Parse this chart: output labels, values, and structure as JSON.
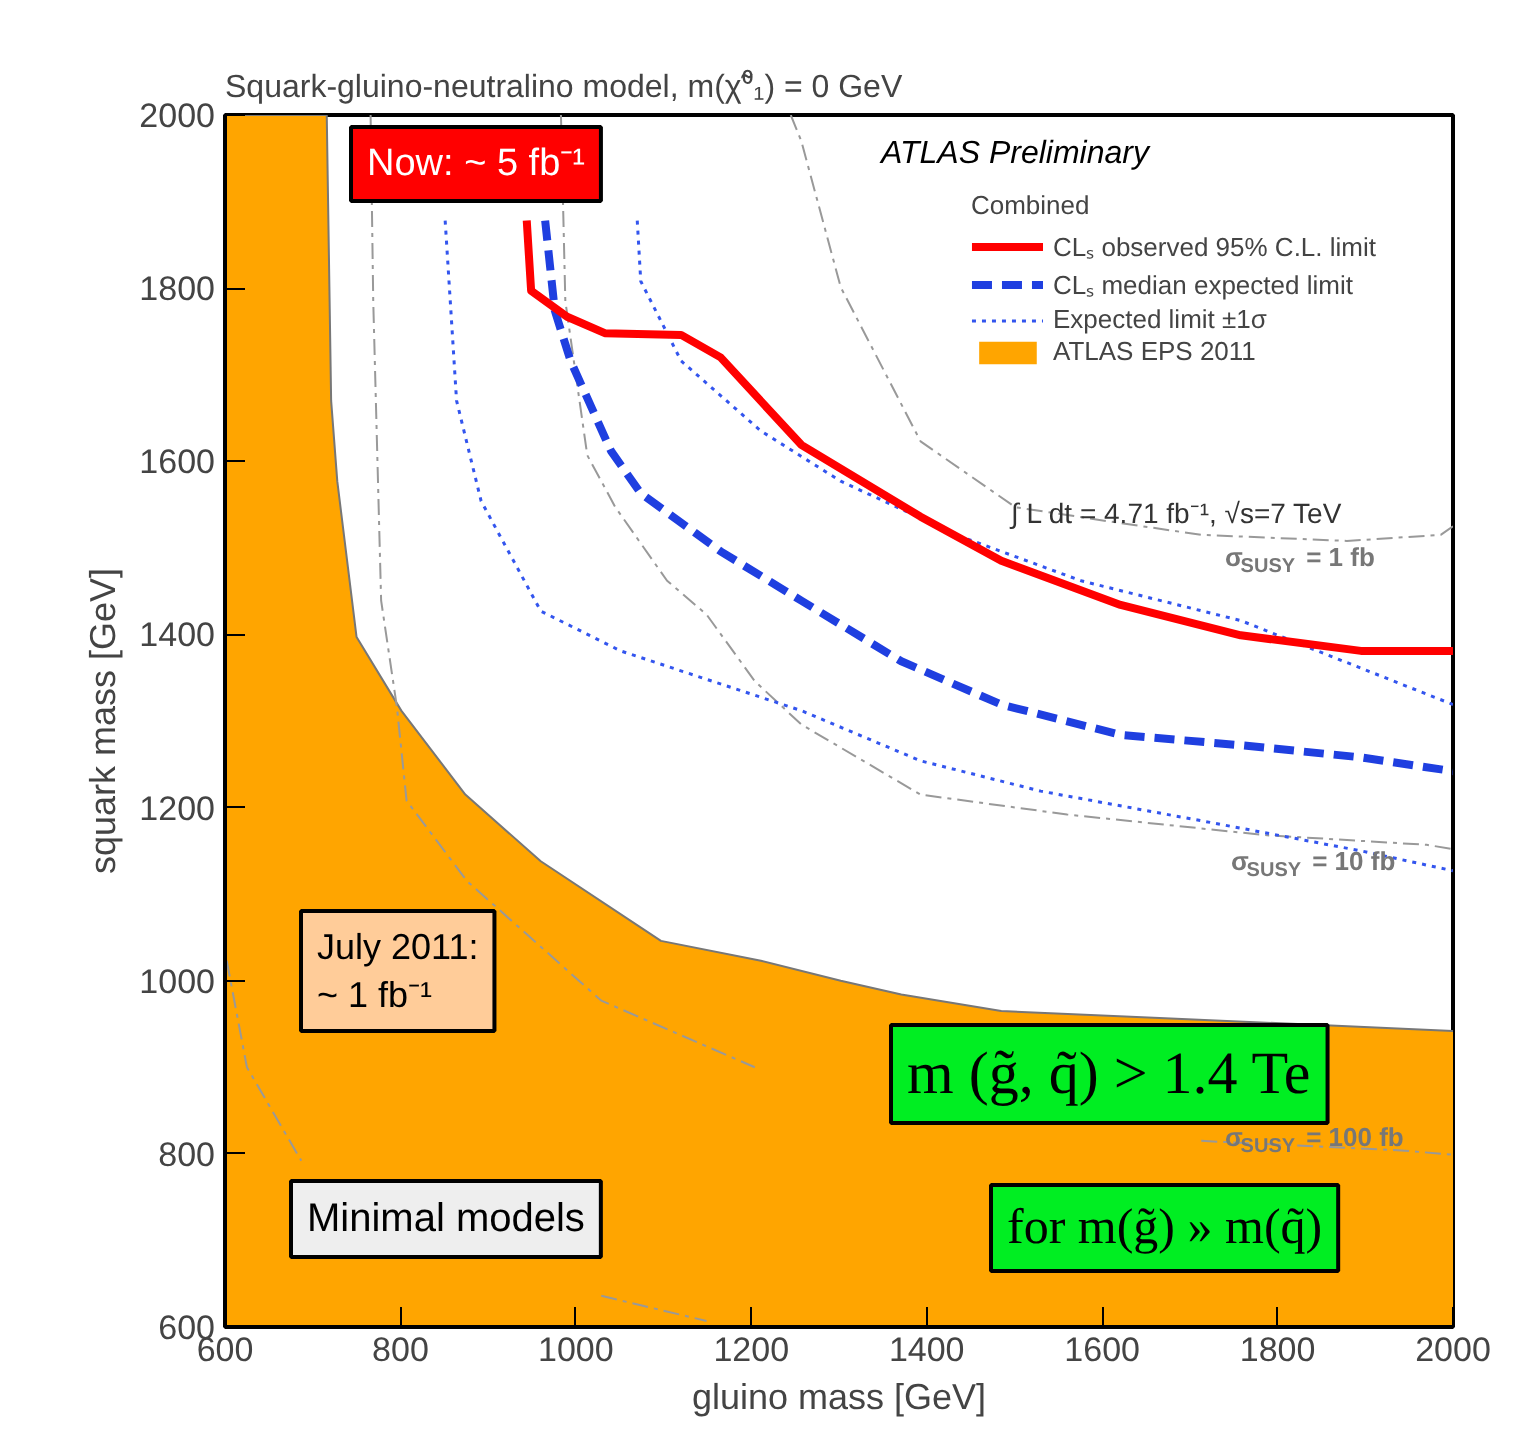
{
  "chart_data": {
    "type": "line",
    "title": "Squark-gluino-neutralino model,  m(χ̃⁰₁) = 0 GeV",
    "xlabel": "gluino mass [GeV]",
    "ylabel": "squark mass [GeV]",
    "xlim": [
      600,
      2000
    ],
    "ylim": [
      600,
      2000
    ],
    "xticks": [
      600,
      800,
      1000,
      1200,
      1400,
      1600,
      1800,
      2000
    ],
    "yticks": [
      600,
      800,
      1000,
      1200,
      1400,
      1600,
      1800,
      2000
    ],
    "grid": false,
    "legend": "top right",
    "legend_title": "Combined",
    "series": [
      {
        "name": "ATLAS EPS 2011",
        "type": "area",
        "color": "#ffa500",
        "x": [
          600,
          716,
          721,
          728,
          750,
          801,
          874,
          960,
          1097,
          1211,
          1302,
          1371,
          1485,
          2000
        ],
        "values": [
          2000,
          2000,
          1670,
          1577,
          1397,
          1312,
          1215,
          1138,
          1046,
          1023,
          1000,
          984,
          965,
          942
        ]
      },
      {
        "line_style": "dashdot",
        "color": "#999999",
        "x": [
          1245,
          1257,
          1302,
          1393,
          1501,
          1605,
          1713,
          1879,
          1986,
          2000
        ],
        "values": [
          2000,
          1970,
          1801,
          1623,
          1547,
          1531,
          1515,
          1508,
          1515,
          1525
        ]
      },
      {
        "line_style": "dashdot",
        "color": "#999999",
        "x": [
          983,
          988,
          1013,
          1045,
          1104,
          1149,
          1204,
          1257,
          1393,
          1560,
          1788,
          1970,
          2000
        ],
        "values": [
          2000,
          1785,
          1607,
          1547,
          1462,
          1423,
          1346,
          1296,
          1215,
          1192,
          1168,
          1157,
          1152
        ]
      },
      {
        "line_style": "dashdot",
        "color": "#999999",
        "x": [
          766,
          769,
          778,
          796,
          807,
          876,
          1029,
          1204,
          1332,
          1485,
          1713,
          1941,
          2000
        ],
        "values": [
          2000,
          1785,
          1439,
          1316,
          1208,
          1115,
          977,
          900,
          null,
          null,
          815,
          804,
          799
        ]
      },
      {
        "line_style": "dashdot",
        "color": "#999999",
        "x": [
          602,
          625,
          687,
          801,
          1029,
          1149
        ],
        "values": [
          1023,
          900,
          792,
          null,
          636,
          607
        ]
      },
      {
        "name": "Expected limit ±1σ",
        "line_style": "dotted",
        "color": "#3355ee",
        "x": [
          851,
          864,
          892,
          960,
          1051,
          1257,
          1393,
          1530,
          1712,
          1895,
          2000
        ],
        "values": [
          1878,
          1670,
          1554,
          1427,
          1381,
          1312,
          1254,
          1219,
          1185,
          1150,
          1127
        ]
      },
      {
        "line_style": "dotted",
        "color": "#3355ee",
        "x": [
          1070,
          1074,
          1120,
          1211,
          1302,
          1439,
          1576,
          1758,
          2000
        ],
        "values": [
          1878,
          1808,
          1716,
          1635,
          1577,
          1513,
          1462,
          1416,
          1319
        ]
      },
      {
        "name": "CLₛ median expected limit",
        "line_style": "dashed",
        "color": "#1f3fe0",
        "x": [
          965,
          976,
          994,
          1040,
          1074,
          1165,
          1257,
          1371,
          1485,
          1621,
          1758,
          1895,
          2000
        ],
        "values": [
          1878,
          1774,
          1716,
          1612,
          1563,
          1496,
          1439,
          1369,
          1319,
          1284,
          1272,
          1258,
          1242
        ]
      },
      {
        "name": "CLₛ observed 95% C.L. limit",
        "line_style": "solid",
        "color": "#ff0000",
        "x": [
          944,
          949,
          990,
          1033,
          1120,
          1165,
          1257,
          1393,
          1485,
          1621,
          1758,
          1895,
          2000
        ],
        "values": [
          1878,
          1797,
          1767,
          1748,
          1746,
          1720,
          1619,
          1536,
          1485,
          1434,
          1399,
          1381,
          1381
        ]
      }
    ],
    "annotations": [
      "ATLAS Preliminary",
      "∫ L dt = 4.71 fb⁻¹, √s=7 TeV",
      "Now: ~ 5 fb⁻¹",
      "July 2011:\n~ 1 fb⁻¹",
      "Minimal models",
      "m (g̃, q̃) > 1.4 Te",
      "for m(g̃) » m(q̃)",
      "σ$_{SUSY}$ = 1 fb",
      "σ$_{SUSY}$ = 10 fb",
      "σ$_{SUSY}$ = 100 fb"
    ]
  }
}
